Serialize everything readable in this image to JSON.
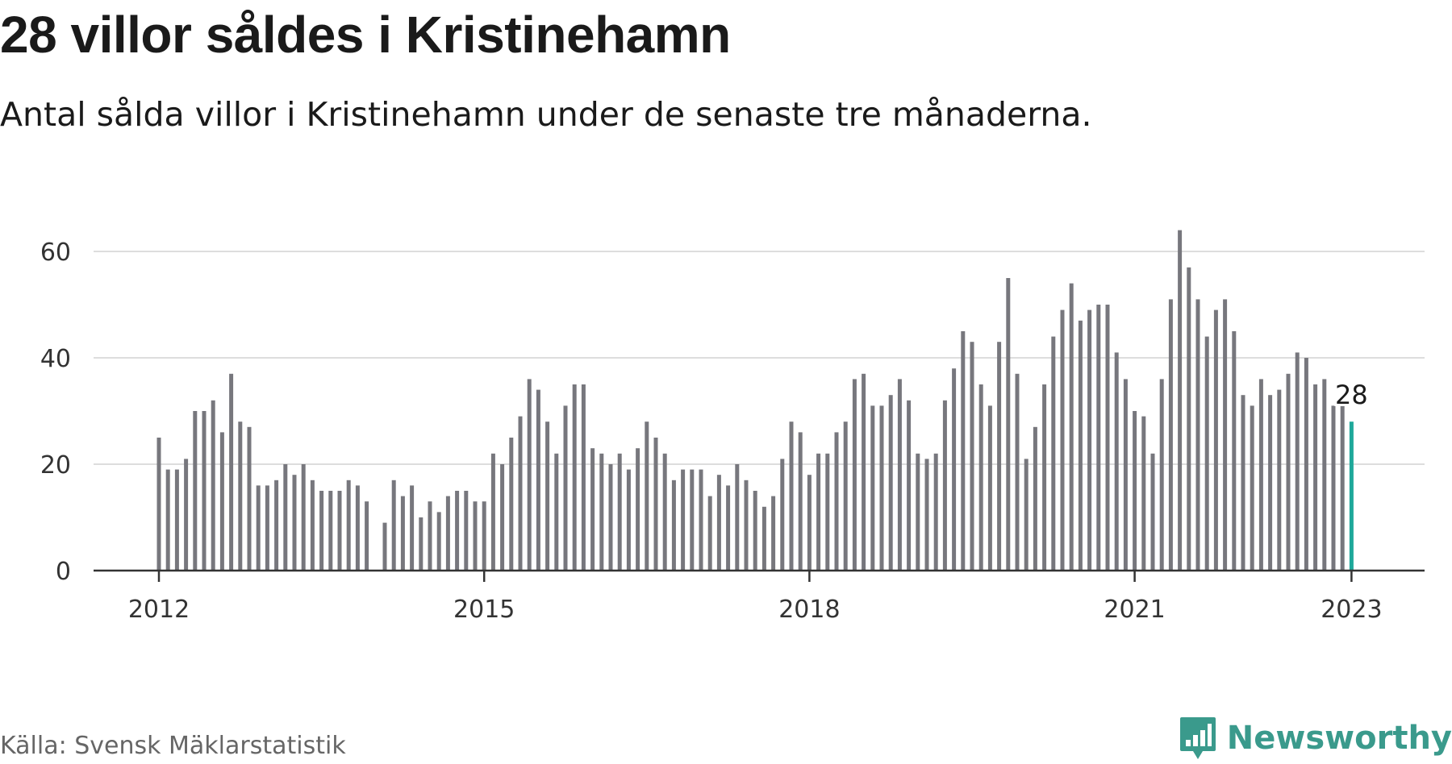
{
  "title": "28 villor såldes i Kristinehamn",
  "subtitle": "Antal sålda villor i Kristinehamn under de senaste tre månaderna.",
  "source": "Källa: Svensk Mäklarstatistik",
  "brand": "Newsworthy",
  "colors": {
    "bar": "#77777d",
    "highlight": "#1fa89a",
    "grid": "#dddddd",
    "axis": "#333333",
    "brand": "#3a9a8c"
  },
  "chart_data": {
    "type": "bar",
    "title": "28 villor såldes i Kristinehamn",
    "subtitle": "Antal sålda villor i Kristinehamn under de senaste tre månaderna.",
    "xlabel": "",
    "ylabel": "",
    "start": "2012-01",
    "frequency": "monthly",
    "x_ticks": [
      "2012",
      "2015",
      "2018",
      "2021",
      "2023"
    ],
    "y_ticks": [
      0,
      20,
      40,
      60
    ],
    "ylim": [
      0,
      65
    ],
    "grid": true,
    "highlight_last": true,
    "highlight_label": "28",
    "values": [
      25,
      19,
      19,
      21,
      30,
      30,
      32,
      26,
      37,
      28,
      27,
      16,
      16,
      17,
      20,
      18,
      20,
      17,
      15,
      15,
      15,
      17,
      16,
      13,
      null,
      9,
      17,
      14,
      16,
      10,
      13,
      11,
      14,
      15,
      15,
      13,
      13,
      22,
      20,
      25,
      29,
      36,
      34,
      28,
      22,
      31,
      35,
      35,
      23,
      22,
      20,
      22,
      19,
      23,
      28,
      25,
      22,
      17,
      19,
      19,
      19,
      14,
      18,
      16,
      20,
      17,
      15,
      12,
      14,
      21,
      28,
      26,
      18,
      22,
      22,
      26,
      28,
      36,
      37,
      31,
      31,
      33,
      36,
      32,
      22,
      21,
      22,
      32,
      38,
      45,
      43,
      35,
      31,
      43,
      55,
      37,
      21,
      27,
      35,
      44,
      49,
      54,
      47,
      49,
      50,
      50,
      41,
      36,
      30,
      29,
      22,
      36,
      51,
      64,
      57,
      51,
      44,
      49,
      51,
      45,
      33,
      31,
      36,
      33,
      34,
      37,
      41,
      40,
      35,
      36,
      31,
      31,
      28
    ]
  }
}
